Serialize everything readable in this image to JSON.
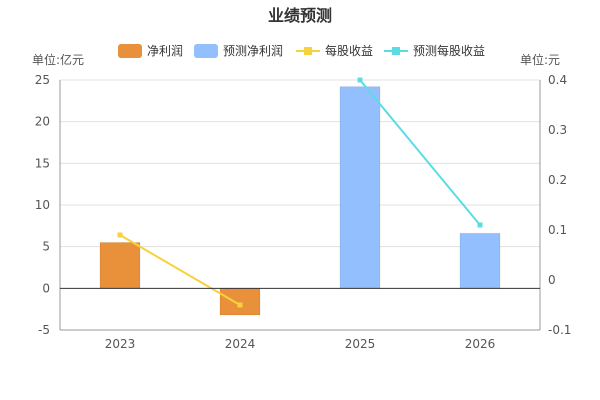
{
  "chart_data": {
    "type": "bar",
    "title": "业绩预测",
    "categories": [
      "2023",
      "2024",
      "2025",
      "2026"
    ],
    "left_axis": {
      "unit": "单位:亿元",
      "ylim": [
        -5,
        25
      ],
      "ticks": [
        -5,
        0,
        5,
        10,
        15,
        20,
        25
      ],
      "tick_labels": [
        "-5",
        "0",
        "5",
        "10",
        "15",
        "20",
        "25"
      ]
    },
    "right_axis": {
      "unit": "单位:元",
      "ylim": [
        -0.1,
        0.4
      ],
      "ticks": [
        -0.1,
        0,
        0.1,
        0.2,
        0.3,
        0.4
      ],
      "tick_labels": [
        "-0.1",
        "0",
        "0.1",
        "0.2",
        "0.3",
        "0.4"
      ]
    },
    "series": [
      {
        "name": "净利润",
        "kind": "bar",
        "axis": "left",
        "color": "#E8913A",
        "values": [
          5.5,
          -3.2,
          null,
          null
        ]
      },
      {
        "name": "预测净利润",
        "kind": "bar",
        "axis": "left",
        "color": "#94BFFF",
        "values": [
          null,
          null,
          24.2,
          6.6
        ]
      },
      {
        "name": "每股收益",
        "kind": "line",
        "axis": "right",
        "color": "#F7D23E",
        "values": [
          0.09,
          -0.05,
          null,
          null
        ]
      },
      {
        "name": "预测每股收益",
        "kind": "line",
        "axis": "right",
        "color": "#5BDCE3",
        "values": [
          null,
          null,
          0.4,
          0.11
        ]
      }
    ],
    "grid": true,
    "legend_position": "top"
  }
}
